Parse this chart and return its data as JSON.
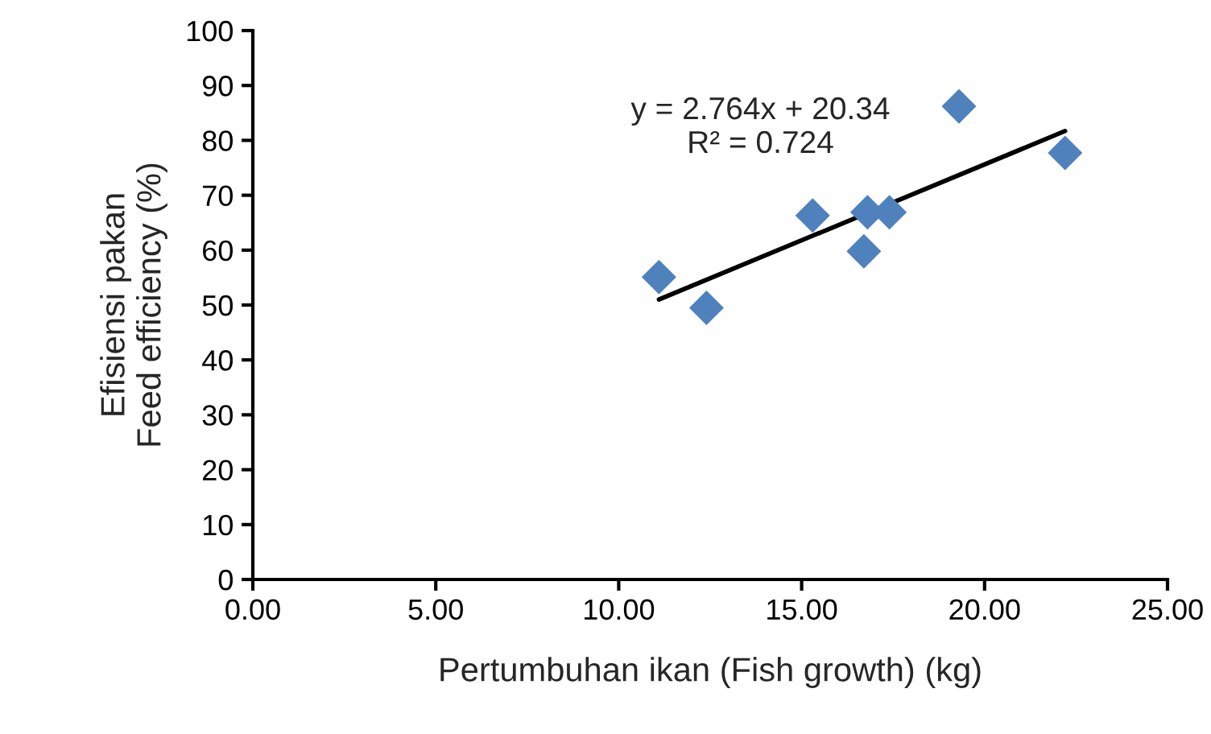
{
  "chart_data": {
    "type": "scatter",
    "xlabel": "Pertumbuhan ikan (Fish growth) (kg)",
    "ylabel": "Efisiensi pakan\nFeed efficiency (%)",
    "marker": "diamond",
    "grid": false,
    "legend": false,
    "xlim": [
      0,
      25
    ],
    "xticks": [
      {
        "value": 0,
        "label": "0.00"
      },
      {
        "value": 5,
        "label": "5.00"
      },
      {
        "value": 10,
        "label": "10.00"
      },
      {
        "value": 15,
        "label": "15.00"
      },
      {
        "value": 20,
        "label": "20.00"
      },
      {
        "value": 25,
        "label": "25.00"
      }
    ],
    "ylim": [
      0,
      100
    ],
    "yticks": [
      0,
      10,
      20,
      30,
      40,
      50,
      60,
      70,
      80,
      90,
      100
    ],
    "series": [
      {
        "color": "#4f81bd",
        "x": [
          11.1,
          12.4,
          15.3,
          16.7,
          16.8,
          17.4,
          19.3,
          22.2
        ],
        "values": [
          55.1,
          49.5,
          66.3,
          59.8,
          66.9,
          66.9,
          86.2,
          77.7
        ]
      },
      {
        "type": "line",
        "marker": "none",
        "color": "#000000",
        "x": [
          11.1,
          22.2
        ],
        "values": [
          51.0,
          81.7
        ]
      }
    ],
    "annotations": [
      "y = 2.764x + 20.34\nR² = 0.724"
    ]
  }
}
